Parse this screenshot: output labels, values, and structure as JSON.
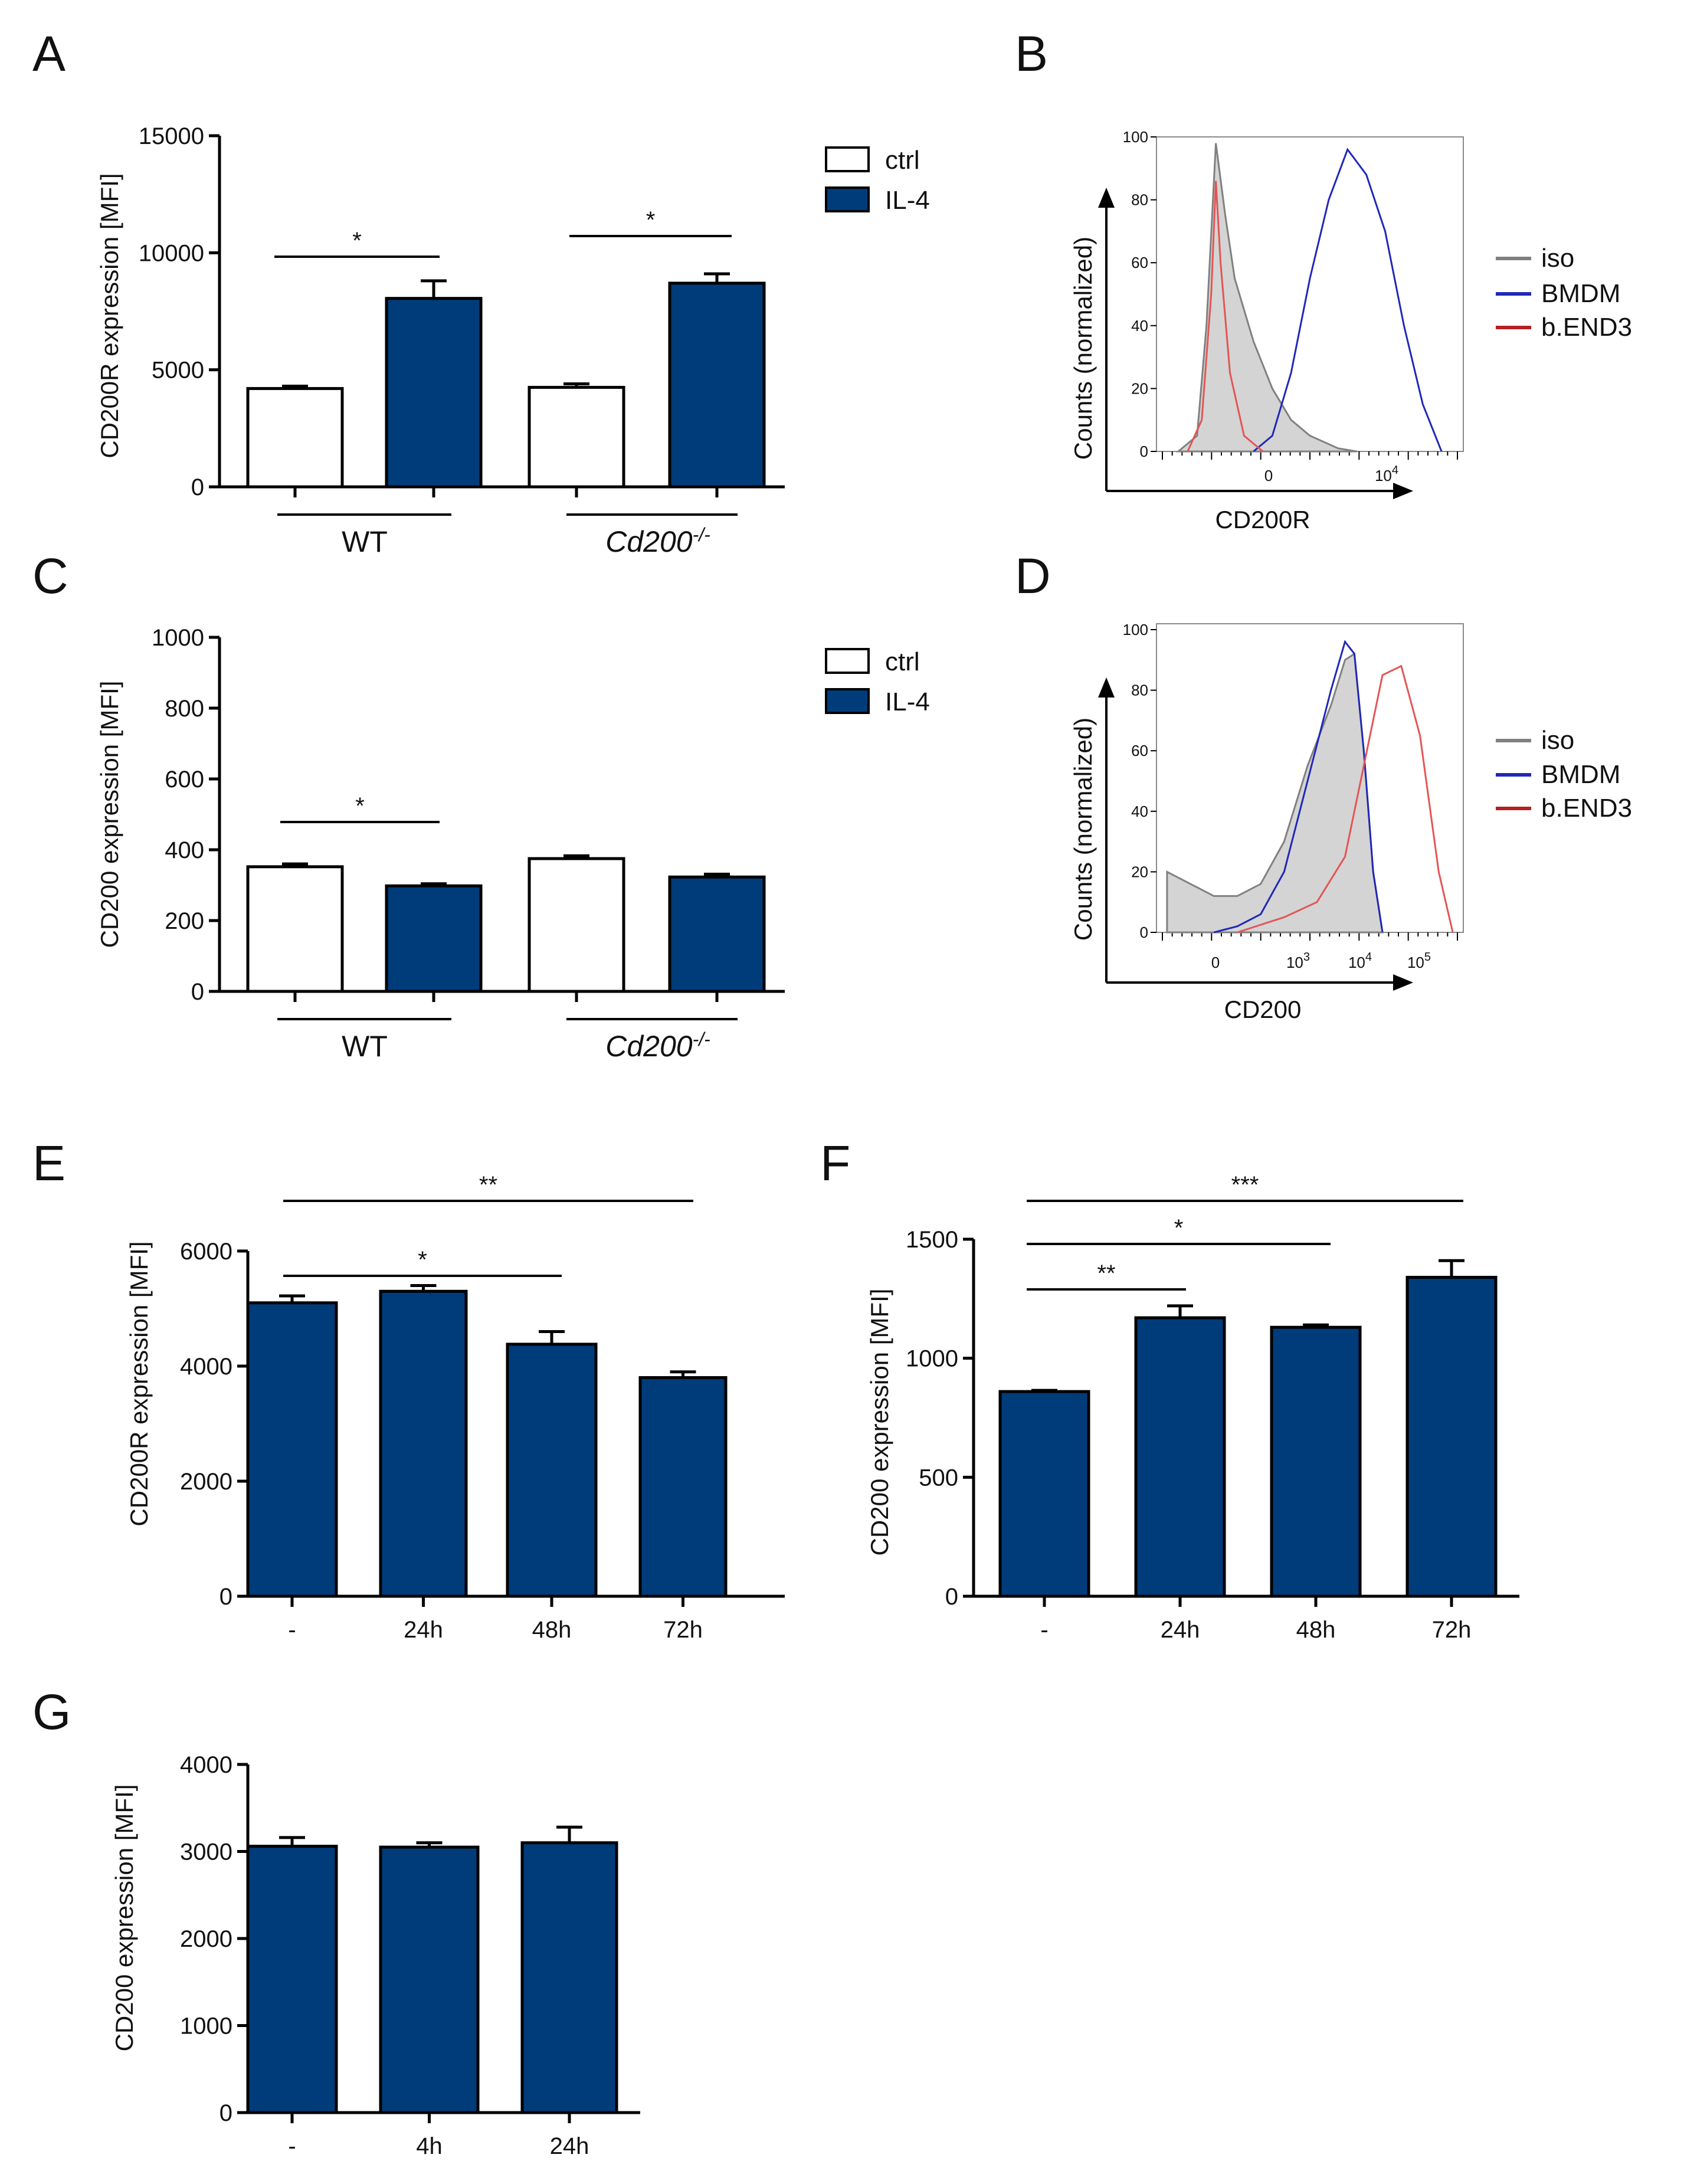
{
  "figure": {
    "panels": [
      "A",
      "B",
      "C",
      "D",
      "E",
      "F",
      "G"
    ],
    "legend_bar": {
      "ctrl": "ctrl",
      "il4": "IL-4"
    },
    "legend_histo": {
      "iso": "iso",
      "bmdm": "BMDM",
      "bend3": "b.END3"
    },
    "colors": {
      "navy": "#003c7a",
      "iso_fill": "#d4d4d4",
      "iso_line": "#808080",
      "bmdm": "#2028b8",
      "bend3": "#e35555",
      "bend3_legend": "#b22222"
    }
  },
  "chart_data": [
    {
      "id": "A",
      "type": "bar",
      "ylabel": "CD200R expression [MFI]",
      "ylim": [
        0,
        15000
      ],
      "yticks": [
        "0",
        "5000",
        "10000",
        "15000"
      ],
      "groups": [
        "WT",
        "Cd200",
        "-/-"
      ],
      "series": [
        {
          "name": "ctrl",
          "values": [
            4200,
            4250
          ],
          "errors": [
            100,
            150
          ]
        },
        {
          "name": "IL-4",
          "values": [
            8050,
            8700
          ],
          "errors": [
            750,
            400
          ]
        }
      ],
      "significance": [
        "*",
        "*"
      ]
    },
    {
      "id": "B",
      "type": "area",
      "xlabel": "CD200R",
      "ylabel": "Counts (normalized)",
      "ylim": [
        0,
        100
      ],
      "yticks": [
        "0",
        "20",
        "40",
        "60",
        "80",
        "100"
      ],
      "xticks": [
        "0",
        "10",
        "4"
      ],
      "series": [
        {
          "name": "iso",
          "x": [
            -0.8,
            -0.4,
            -0.2,
            0,
            0.2,
            0.4,
            0.8,
            1.2,
            1.6,
            2.0,
            2.6,
            3.0
          ],
          "y": [
            0,
            5,
            40,
            98,
            75,
            55,
            35,
            20,
            10,
            5,
            1,
            0
          ]
        },
        {
          "name": "BMDM",
          "x": [
            0.8,
            1.2,
            1.6,
            2.0,
            2.4,
            2.8,
            3.2,
            3.6,
            4.0,
            4.4,
            4.8
          ],
          "y": [
            0,
            5,
            25,
            55,
            80,
            96,
            88,
            70,
            40,
            15,
            0
          ]
        },
        {
          "name": "b.END3",
          "x": [
            -0.6,
            -0.3,
            -0.1,
            0,
            0.1,
            0.3,
            0.6,
            1.0
          ],
          "y": [
            0,
            10,
            50,
            86,
            60,
            25,
            5,
            0
          ]
        }
      ]
    },
    {
      "id": "C",
      "type": "bar",
      "ylabel": "CD200 expression [MFI]",
      "ylim": [
        0,
        1000
      ],
      "yticks": [
        "0",
        "200",
        "400",
        "600",
        "800",
        "1000"
      ],
      "groups": [
        "WT",
        "Cd200",
        "-/-"
      ],
      "series": [
        {
          "name": "ctrl",
          "values": [
            352,
            375
          ],
          "errors": [
            8,
            8
          ]
        },
        {
          "name": "IL-4",
          "values": [
            298,
            323
          ],
          "errors": [
            6,
            8
          ]
        }
      ],
      "significance": [
        "*"
      ]
    },
    {
      "id": "D",
      "type": "area",
      "xlabel": "CD200",
      "ylabel": "Counts (normalized)",
      "ylim": [
        0,
        100
      ],
      "yticks": [
        "0",
        "20",
        "40",
        "60",
        "80",
        "100"
      ],
      "xticks": [
        "0",
        "10",
        "3",
        "10",
        "4",
        "10",
        "5"
      ],
      "series": [
        {
          "name": "iso",
          "x": [
            -1.0,
            -0.5,
            0,
            0.5,
            1.0,
            1.5,
            2.0,
            2.5,
            2.8,
            3.0,
            3.2,
            3.4,
            3.6
          ],
          "y": [
            20,
            16,
            12,
            12,
            16,
            30,
            55,
            75,
            90,
            92,
            60,
            20,
            0
          ]
        },
        {
          "name": "BMDM",
          "x": [
            0,
            0.5,
            1.0,
            1.5,
            2.0,
            2.5,
            2.8,
            3.0,
            3.2,
            3.4,
            3.6
          ],
          "y": [
            0,
            2,
            6,
            20,
            50,
            80,
            96,
            92,
            60,
            20,
            0
          ]
        },
        {
          "name": "b.END3",
          "x": [
            0.5,
            1.5,
            2.2,
            2.8,
            3.2,
            3.6,
            4.0,
            4.4,
            4.8,
            5.1
          ],
          "y": [
            0,
            5,
            10,
            25,
            55,
            85,
            88,
            65,
            20,
            0
          ]
        }
      ]
    },
    {
      "id": "E",
      "type": "bar",
      "ylabel": "CD200R expression [MFI]",
      "ylim": [
        0,
        6000
      ],
      "yticks": [
        "0",
        "2000",
        "4000",
        "6000"
      ],
      "categories": [
        "-",
        "24h",
        "48h",
        "72h"
      ],
      "values": [
        5100,
        5300,
        4380,
        3800
      ],
      "errors": [
        120,
        100,
        220,
        100
      ],
      "significance": [
        "*",
        "**"
      ]
    },
    {
      "id": "F",
      "type": "bar",
      "ylabel": "CD200 expression [MFI]",
      "ylim": [
        0,
        1500
      ],
      "yticks": [
        "0",
        "500",
        "1000",
        "1500"
      ],
      "categories": [
        "-",
        "24h",
        "48h",
        "72h"
      ],
      "values": [
        860,
        1170,
        1130,
        1340
      ],
      "errors": [
        5,
        50,
        10,
        70
      ],
      "significance": [
        "**",
        "*",
        "***"
      ]
    },
    {
      "id": "G",
      "type": "bar",
      "ylabel": "CD200 expression [MFI]",
      "ylim": [
        0,
        4000
      ],
      "yticks": [
        "0",
        "1000",
        "2000",
        "3000",
        "4000"
      ],
      "categories": [
        "-",
        "4h",
        "24h"
      ],
      "values": [
        3060,
        3050,
        3100
      ],
      "errors": [
        100,
        50,
        180
      ]
    }
  ]
}
